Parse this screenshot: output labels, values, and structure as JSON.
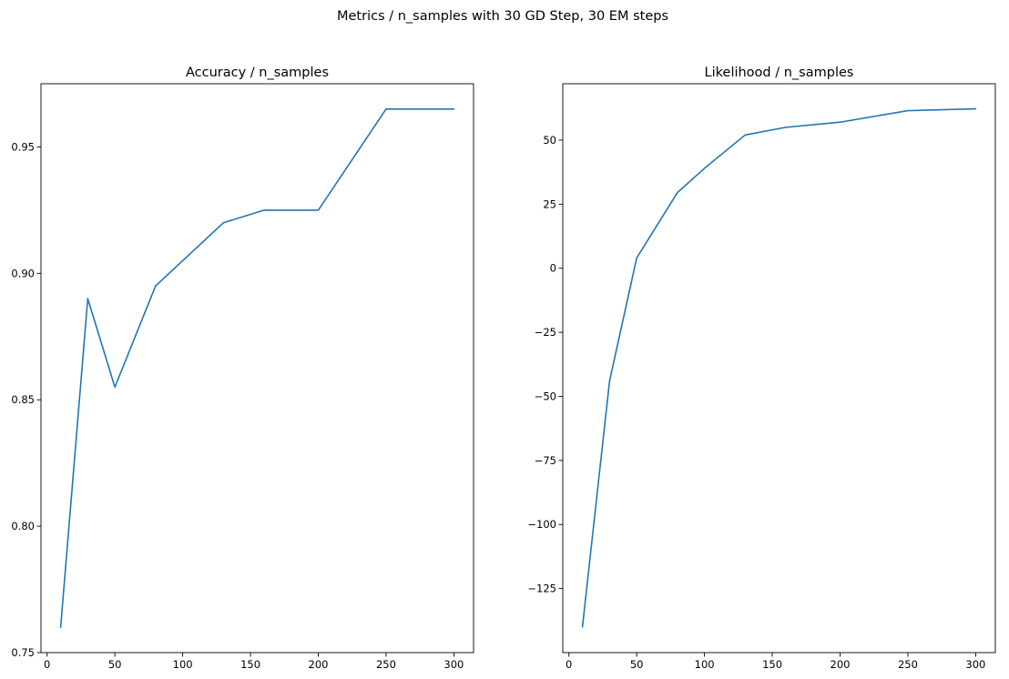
{
  "figure": {
    "suptitle": "Metrics / n_samples with 30 GD Step, 30 EM steps"
  },
  "chart_data": [
    {
      "type": "line",
      "title": "Accuracy / n_samples",
      "xlabel": "",
      "ylabel": "",
      "x": [
        10,
        30,
        50,
        80,
        100,
        130,
        160,
        200,
        250,
        300
      ],
      "series": [
        {
          "values": [
            0.76,
            0.89,
            0.855,
            0.895,
            0.905,
            0.92,
            0.925,
            0.925,
            0.965,
            0.965
          ]
        }
      ],
      "xlim": [
        -4.5,
        314.5
      ],
      "ylim": [
        0.75,
        0.975
      ],
      "xticks": [
        0,
        50,
        100,
        150,
        200,
        250,
        300
      ],
      "xtick_labels": [
        "0",
        "50",
        "100",
        "150",
        "200",
        "250",
        "300"
      ],
      "yticks": [
        0.75,
        0.8,
        0.85,
        0.9,
        0.95
      ],
      "ytick_labels": [
        "0.75",
        "0.80",
        "0.85",
        "0.90",
        "0.95"
      ],
      "grid": false,
      "line_color": "#1f77b4"
    },
    {
      "type": "line",
      "title": "Likelihood / n_samples",
      "xlabel": "",
      "ylabel": "",
      "x": [
        10,
        30,
        50,
        80,
        100,
        130,
        160,
        200,
        250,
        300
      ],
      "series": [
        {
          "values": [
            -140,
            -44,
            4,
            29.5,
            39,
            52,
            55,
            57,
            61.5,
            62.2
          ]
        }
      ],
      "xlim": [
        -4.5,
        314.5
      ],
      "ylim": [
        -150,
        72
      ],
      "xticks": [
        0,
        50,
        100,
        150,
        200,
        250,
        300
      ],
      "xtick_labels": [
        "0",
        "50",
        "100",
        "150",
        "200",
        "250",
        "300"
      ],
      "yticks": [
        -125,
        -100,
        -75,
        -50,
        -25,
        0,
        25,
        50
      ],
      "ytick_labels": [
        "−125",
        "−100",
        "−75",
        "−50",
        "−25",
        "0",
        "25",
        "50"
      ],
      "grid": false,
      "line_color": "#1f77b4"
    }
  ]
}
